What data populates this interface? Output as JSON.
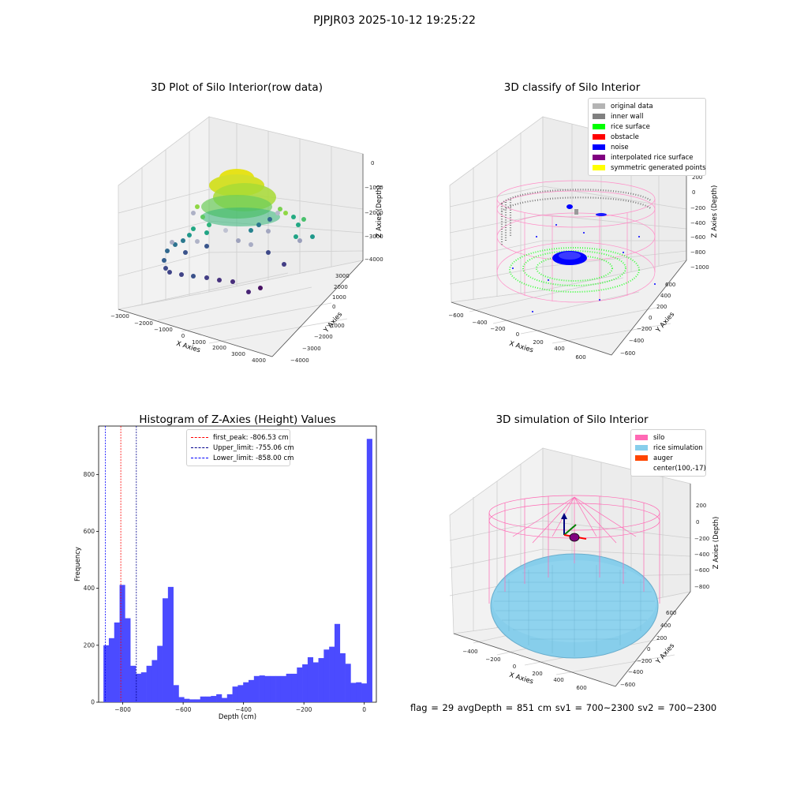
{
  "suptitle": "PJPJR03 2025-10-12 19:25:22",
  "status_text": "flag = 29  avgDepth = 851 cm  sv1 = 700~2300  sv2 = 700~2300",
  "chart_data": [
    {
      "type": "scatter",
      "projection": "3d",
      "title": "3D Plot of Silo Interior(row data)",
      "xlabel": "X Axies",
      "ylabel": "Y Axies",
      "zlabel": "Z Axies (Depth)",
      "x_ticks": [
        "−3000",
        "−2000",
        "−1000",
        "0",
        "1000",
        "2000",
        "3000",
        "4000"
      ],
      "y_ticks": [
        "−4000",
        "−3000",
        "−2000",
        "−1000",
        "0",
        "1000",
        "2000",
        "3000"
      ],
      "z_ticks": [
        "0",
        "−1000",
        "−2000",
        "−3000",
        "−4000"
      ],
      "colormap": "viridis"
    },
    {
      "type": "scatter",
      "projection": "3d",
      "title": "3D classify of Silo Interior",
      "xlabel": "X Axies",
      "ylabel": "Y Axies",
      "zlabel": "Z Axies (Depth)",
      "x_ticks": [
        "−600",
        "−400",
        "−200",
        "0",
        "200",
        "400",
        "600"
      ],
      "y_ticks": [
        "−600",
        "−400",
        "−200",
        "0",
        "200",
        "400",
        "600"
      ],
      "z_ticks": [
        "200",
        "0",
        "−200",
        "−400",
        "−600",
        "−800",
        "−1000"
      ],
      "legend": [
        {
          "label": "original data",
          "color": "#b4b4b4"
        },
        {
          "label": "inner wall",
          "color": "#808080"
        },
        {
          "label": "rice surface",
          "color": "#00ff00"
        },
        {
          "label": "obstacle",
          "color": "#ff0000"
        },
        {
          "label": "noise",
          "color": "#0000ff"
        },
        {
          "label": "interpolated rice surface",
          "color": "#800080"
        },
        {
          "label": "symmetric generated points",
          "color": "#ffff00"
        }
      ]
    },
    {
      "type": "bar",
      "title": "Histogram of Z-Axies (Height) Values",
      "xlabel": "Depth (cm)",
      "ylabel": "Frequency",
      "xlim": [
        -880,
        40
      ],
      "ylim": [
        0,
        970
      ],
      "x_ticks": [
        -800,
        -600,
        -400,
        -200,
        0
      ],
      "x_tick_labels": [
        "−800",
        "−600",
        "−400",
        "−200",
        "0"
      ],
      "y_ticks": [
        0,
        200,
        400,
        600,
        800
      ],
      "bar_color": "#4b4bff",
      "bin_start": -864,
      "bin_width": 17.8,
      "values": [
        200,
        225,
        280,
        412,
        295,
        128,
        100,
        105,
        128,
        148,
        198,
        365,
        405,
        60,
        18,
        12,
        10,
        10,
        20,
        20,
        22,
        28,
        15,
        28,
        55,
        60,
        70,
        78,
        92,
        94,
        92,
        92,
        92,
        92,
        100,
        100,
        122,
        133,
        158,
        140,
        155,
        185,
        195,
        275,
        172,
        135,
        68,
        70,
        66,
        925
      ],
      "vlines": [
        {
          "x": -806.53,
          "label": "first_peak: -806.53 cm",
          "color": "#ff0000"
        },
        {
          "x": -755.06,
          "label": "Upper_limit: -755.06 cm",
          "color": "#00008b"
        },
        {
          "x": -858.0,
          "label": "Lower_limit: -858.00 cm",
          "color": "#0000ff"
        }
      ]
    },
    {
      "type": "scatter",
      "projection": "3d",
      "title": "3D simulation of Silo Interior",
      "xlabel": "X Axies",
      "ylabel": "Y Axies",
      "zlabel": "Z Axies (Depth)",
      "x_ticks": [
        "−400",
        "−200",
        "0",
        "200",
        "400",
        "600"
      ],
      "y_ticks": [
        "−600",
        "−400",
        "−200",
        "0",
        "200",
        "400",
        "600"
      ],
      "z_ticks": [
        "200",
        "0",
        "−200",
        "−400",
        "−600",
        "−800"
      ],
      "legend": [
        {
          "label": "silo",
          "color": "#ff69b4"
        },
        {
          "label": "rice simulation",
          "color": "#87ceeb"
        },
        {
          "label": "auger",
          "color": "#ff4500"
        },
        {
          "label": "center(100,-17)",
          "color": "#ffffff"
        }
      ]
    }
  ]
}
